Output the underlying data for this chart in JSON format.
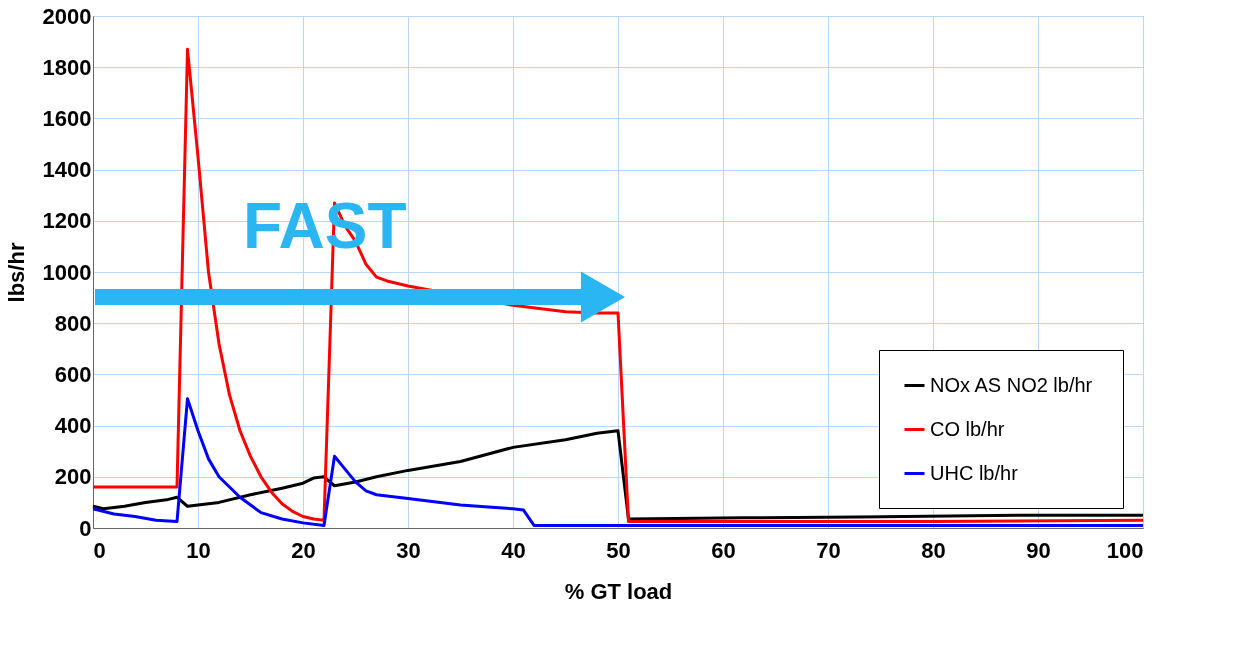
{
  "chart_data": {
    "type": "line",
    "xlabel": "% GT load",
    "ylabel": "lbs/hr",
    "xlim": [
      0,
      100
    ],
    "xticks": [
      0,
      10,
      20,
      30,
      40,
      50,
      60,
      70,
      80,
      90,
      100
    ],
    "ylim": [
      0,
      2000
    ],
    "yticks": [
      0,
      200,
      400,
      600,
      800,
      1000,
      1200,
      1400,
      1600,
      1800,
      2000
    ],
    "grid": true,
    "legend": "bottom right",
    "marker": "none",
    "line_style": "solid",
    "annotations": [
      "FAST"
    ],
    "series": [
      {
        "name": "NOx AS NO2  lb/hr",
        "color": "#000000",
        "x": [
          0,
          1,
          3,
          5,
          7,
          8,
          9,
          12,
          15,
          18,
          20,
          21,
          22,
          23,
          25,
          27,
          30,
          35,
          40,
          45,
          48,
          50,
          51,
          62,
          73,
          88,
          100
        ],
        "values": [
          85,
          75,
          85,
          100,
          110,
          120,
          85,
          100,
          130,
          155,
          175,
          195,
          200,
          165,
          180,
          200,
          225,
          260,
          315,
          345,
          370,
          380,
          35,
          40,
          43,
          50,
          50
        ]
      },
      {
        "name": "CO  lb/hr",
        "color": "#ff0000",
        "x": [
          0,
          8,
          9,
          10,
          11,
          12,
          13,
          14,
          15,
          16,
          17,
          18,
          19,
          20,
          21,
          22,
          23,
          24,
          25,
          26,
          27,
          28,
          30,
          40,
          45,
          48,
          50,
          51,
          80,
          100
        ],
        "values": [
          160,
          160,
          1870,
          1450,
          1000,
          720,
          520,
          380,
          280,
          200,
          140,
          95,
          65,
          45,
          35,
          30,
          1270,
          1180,
          1120,
          1030,
          980,
          965,
          945,
          870,
          845,
          840,
          840,
          25,
          25,
          30
        ]
      },
      {
        "name": "UHC  lb/hr",
        "color": "#0000ff",
        "x": [
          0,
          2,
          4,
          6,
          8,
          9,
          10,
          11,
          12,
          14,
          16,
          18,
          20,
          22,
          23,
          24,
          25,
          26,
          27,
          30,
          35,
          40,
          41,
          42,
          100
        ],
        "values": [
          75,
          55,
          45,
          30,
          25,
          505,
          380,
          270,
          200,
          120,
          60,
          35,
          20,
          10,
          280,
          230,
          180,
          145,
          130,
          115,
          90,
          75,
          70,
          10,
          10
        ]
      }
    ]
  }
}
